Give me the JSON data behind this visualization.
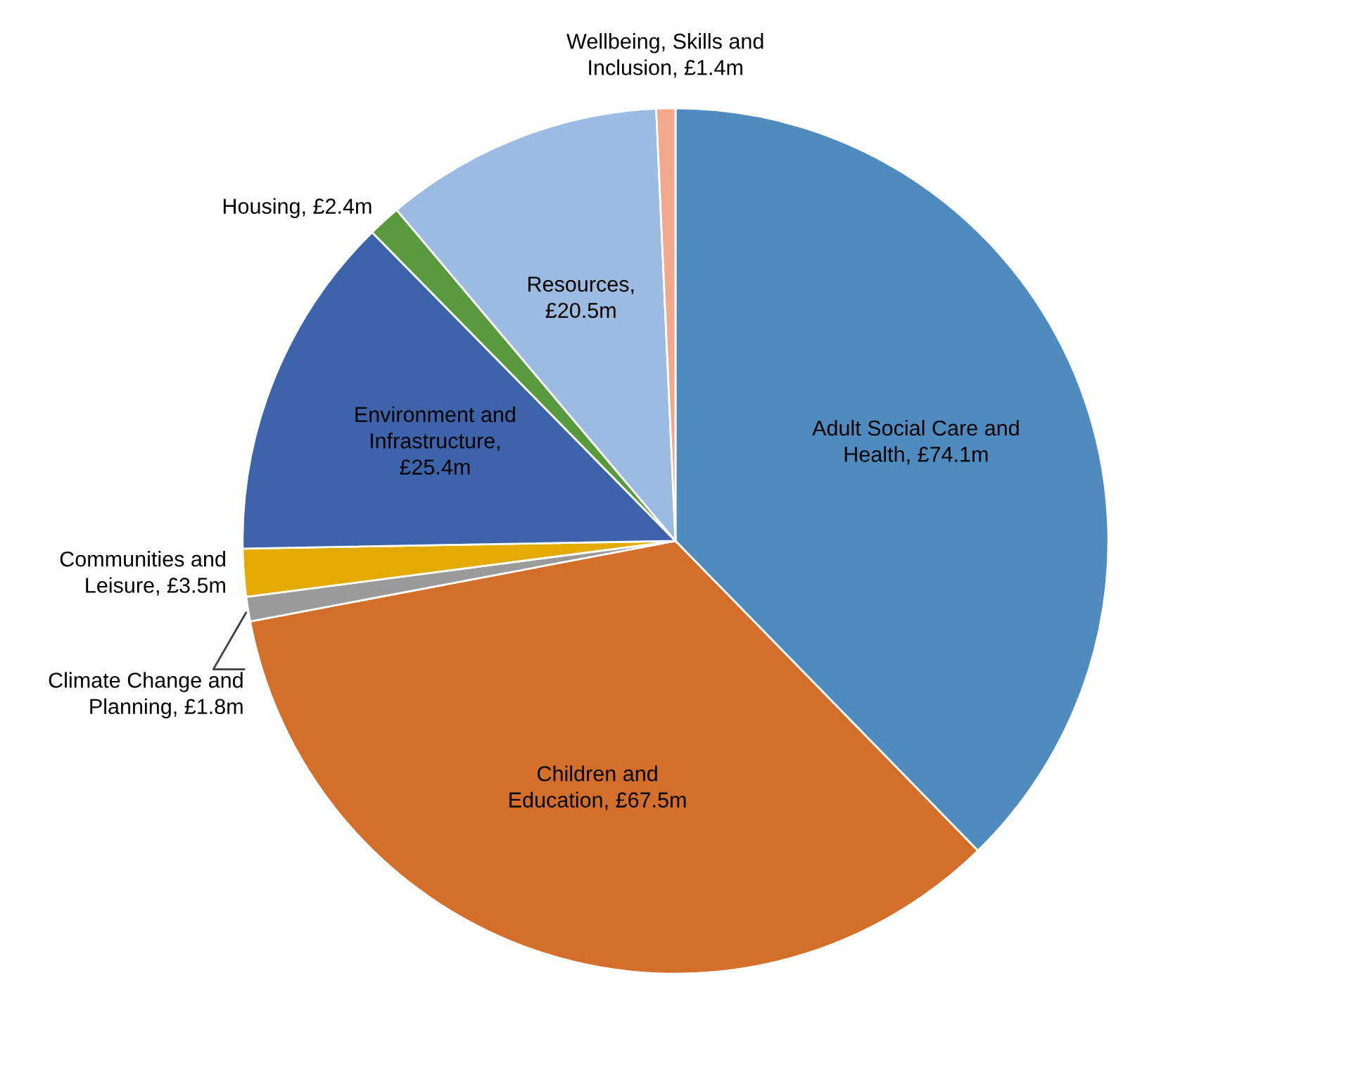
{
  "chart_data": {
    "type": "pie",
    "categories": [
      "Adult Social Care and\nHealth, £74.1m",
      "Children and\nEducation, £67.5m",
      "Climate Change and\nPlanning, £1.8m",
      "Communities and\nLeisure, £3.5m",
      "Environment and\nInfrastructure,\n£25.4m",
      "Housing, £2.4m",
      "Resources,\n£20.5m",
      "Wellbeing, Skills and\nInclusion, £1.4m"
    ],
    "values": [
      74.1,
      67.5,
      1.8,
      3.5,
      25.4,
      2.4,
      20.5,
      1.4
    ],
    "colors": [
      "#4f8bbe",
      "#d46f2b",
      "#9a9a9a",
      "#e3aa00",
      "#3d64ab",
      "#589a3d",
      "#9cbbe1",
      "#f1a98b"
    ],
    "legend": false
  }
}
